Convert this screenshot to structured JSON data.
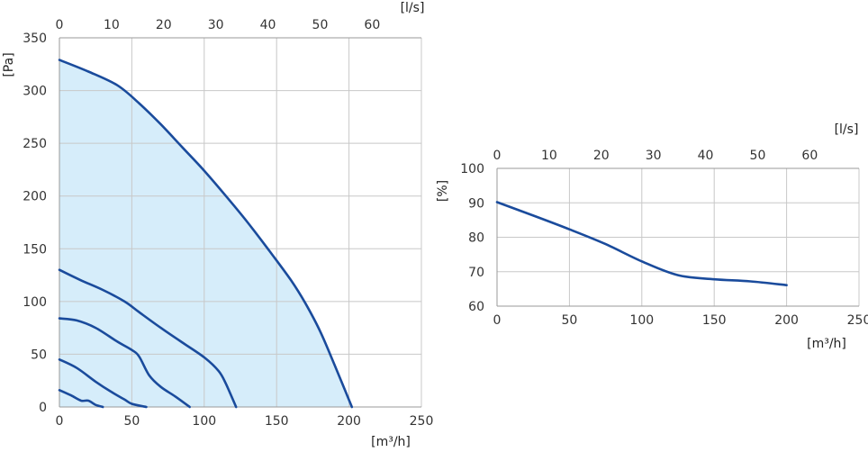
{
  "chart_data": [
    {
      "type": "line",
      "title": "",
      "xlabel": "[m³/h]",
      "ylabel": "[Pa]",
      "secondary_xlabel": "[l/s]",
      "xlim": [
        0,
        250
      ],
      "ylim": [
        0,
        350
      ],
      "secondary_xlim": [
        0,
        69.44
      ],
      "x_ticks": [
        "0",
        "50",
        "100",
        "150",
        "200",
        "250"
      ],
      "y_ticks": [
        "0",
        "50",
        "100",
        "150",
        "200",
        "250",
        "300",
        "350"
      ],
      "secondary_x_ticks": [
        "0",
        "10",
        "20",
        "30",
        "40",
        "50",
        "60"
      ],
      "grid": true,
      "legend": "none",
      "fill_color": "#d6edfa",
      "line_color": "#1a4b9c",
      "series": [
        {
          "x": [
            0,
            20,
            40,
            55,
            70,
            85,
            100,
            115,
            130,
            145,
            160,
            170,
            180,
            190,
            202
          ],
          "y": [
            329,
            318,
            305,
            288,
            268,
            246,
            224,
            200,
            175,
            148,
            120,
            98,
            72,
            40,
            0
          ],
          "filled": true
        },
        {
          "x": [
            0,
            15,
            30,
            45,
            55,
            70,
            85,
            100,
            110,
            115,
            122
          ],
          "y": [
            130,
            120,
            111,
            100,
            90,
            75,
            61,
            47,
            34,
            22,
            0
          ]
        },
        {
          "x": [
            0,
            12,
            25,
            40,
            50,
            55,
            62,
            70,
            80,
            90
          ],
          "y": [
            84,
            82,
            75,
            62,
            54,
            48,
            30,
            19,
            10,
            0
          ]
        },
        {
          "x": [
            0,
            12,
            25,
            35,
            45,
            50,
            60
          ],
          "y": [
            45,
            37,
            24,
            15,
            7,
            3,
            0
          ]
        },
        {
          "x": [
            0,
            8,
            15,
            20,
            25,
            30
          ],
          "y": [
            16,
            11,
            6,
            6,
            2,
            0
          ]
        }
      ]
    },
    {
      "type": "line",
      "title": "",
      "xlabel": "[m³/h]",
      "ylabel": "[%]",
      "secondary_xlabel": "[l/s]",
      "xlim": [
        0,
        250
      ],
      "ylim": [
        60,
        100
      ],
      "secondary_xlim": [
        0,
        69.44
      ],
      "x_ticks": [
        "0",
        "50",
        "100",
        "150",
        "200",
        "250"
      ],
      "y_ticks": [
        "60",
        "70",
        "80",
        "90",
        "100"
      ],
      "secondary_x_ticks": [
        "0",
        "10",
        "20",
        "30",
        "40",
        "50",
        "60"
      ],
      "grid": true,
      "legend": "none",
      "line_color": "#1a4b9c",
      "series": [
        {
          "x": [
            0,
            25,
            50,
            75,
            100,
            125,
            150,
            175,
            200
          ],
          "y": [
            90.2,
            86.3,
            82.3,
            78,
            73,
            69,
            67.8,
            67.2,
            66.1
          ]
        }
      ]
    }
  ]
}
